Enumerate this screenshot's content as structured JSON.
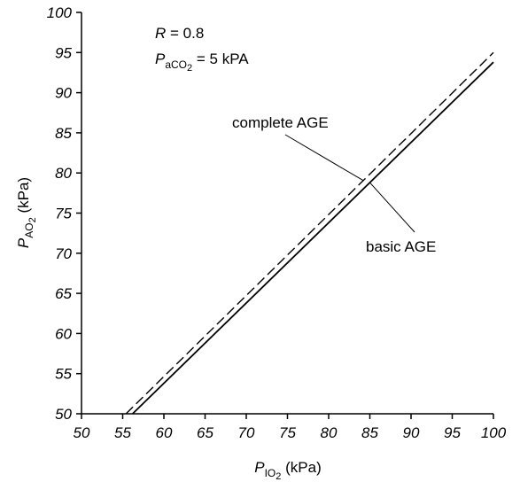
{
  "chart_data": {
    "type": "line",
    "x_range": [
      50,
      100
    ],
    "y_range": [
      50,
      100
    ],
    "x_ticks": [
      50,
      55,
      60,
      65,
      70,
      75,
      80,
      85,
      90,
      95,
      100
    ],
    "y_ticks": [
      50,
      55,
      60,
      65,
      70,
      75,
      80,
      85,
      90,
      95,
      100
    ],
    "xlabel": {
      "main": "P",
      "sub": "IO",
      "sub2": "2",
      "unit": " (kPa)"
    },
    "ylabel": {
      "main": "P",
      "sub": "AO",
      "sub2": "2",
      "unit": " (kPa)"
    },
    "grid": false,
    "params": {
      "r_label": "R = 0.8",
      "paco2_label": "P",
      "paco2_sub": "aCO",
      "paco2_sub2": "2",
      "paco2_value": " = 5 kPA"
    },
    "series": [
      {
        "name": "complete AGE",
        "style": "dashed",
        "x": [
          55.4,
          100
        ],
        "y": [
          50,
          95
        ]
      },
      {
        "name": "basic AGE",
        "style": "solid",
        "x": [
          56.2,
          100
        ],
        "y": [
          50,
          93.8
        ]
      }
    ],
    "annotations": [
      {
        "text": "complete AGE",
        "target_series": 0,
        "target_x": 84.2
      },
      {
        "text": "basic AGE",
        "target_series": 1,
        "target_x": 85.0
      }
    ]
  }
}
